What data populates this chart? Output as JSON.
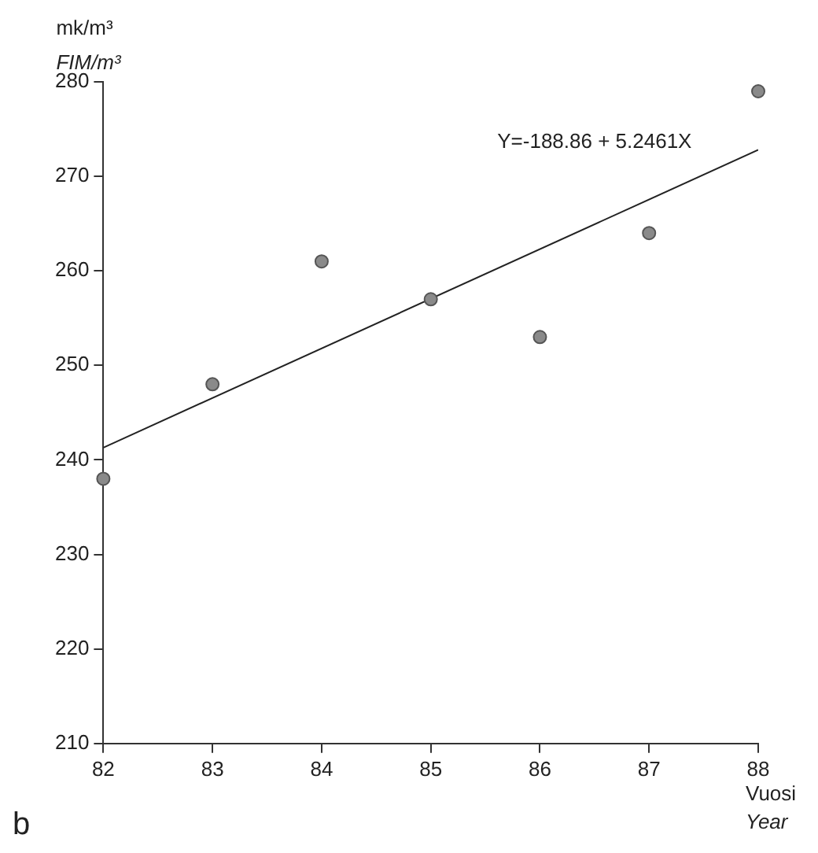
{
  "chart_data": {
    "type": "scatter",
    "ylabel": "mk/m³\nFIM/m³",
    "xlabel": "Vuosi\nYear",
    "x": [
      82,
      83,
      84,
      85,
      86,
      87,
      88
    ],
    "series": [
      {
        "color": "#8a8a8a",
        "marker": "circle",
        "values": [
          238,
          248,
          261,
          257,
          253,
          264,
          279
        ]
      },
      {
        "type": "line",
        "color": "#222222",
        "x": [
          82,
          88
        ],
        "values": [
          241.3,
          272.8
        ]
      }
    ],
    "xlim": [
      82,
      88
    ],
    "xticks": [
      82,
      83,
      84,
      85,
      86,
      87,
      88
    ],
    "ylim": [
      210,
      280
    ],
    "yticks": [
      210,
      220,
      230,
      240,
      250,
      260,
      270,
      280
    ],
    "grid": false,
    "legend": false,
    "annotations": [
      "Y=-188.86 + 5.2461X",
      "b"
    ]
  }
}
